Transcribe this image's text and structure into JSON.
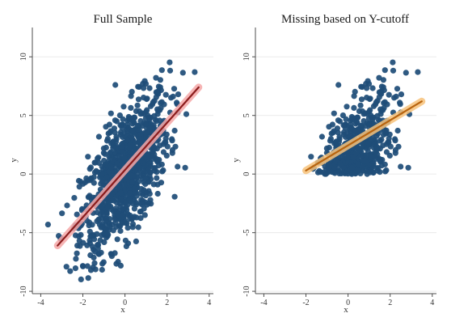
{
  "chart_data": [
    {
      "type": "scatter",
      "title": "Full Sample",
      "xlabel": "x",
      "ylabel": "y",
      "xlim": [
        -4.4,
        4.2
      ],
      "ylim": [
        -10.2,
        12.5
      ],
      "xticks": [
        "-4",
        "-2",
        "0",
        "2",
        "4"
      ],
      "yticks": [
        "-10",
        "-5",
        "0",
        "5",
        "10"
      ],
      "xtick_values": [
        -4,
        -2,
        0,
        2,
        4
      ],
      "ytick_values": [
        -10,
        -5,
        0,
        5,
        10
      ],
      "grid": true,
      "cutoff": null,
      "series": [
        {
          "kind": "points",
          "color": "#1f4e79",
          "n": 1000,
          "x_range": [
            -3.2,
            3.5
          ],
          "y_range": [
            -10,
            9.5
          ]
        },
        {
          "kind": "fit",
          "color": "#8b1c1c",
          "band_color": "#f4a7a7",
          "x": [
            -3.2,
            3.5
          ],
          "y": [
            -6.1,
            7.4
          ]
        }
      ]
    },
    {
      "type": "scatter",
      "title": "Missing based on Y-cutoff",
      "xlabel": "x",
      "ylabel": "y",
      "xlim": [
        -4.4,
        4.2
      ],
      "ylim": [
        -10.2,
        12.5
      ],
      "xticks": [
        "-4",
        "-2",
        "0",
        "2",
        "4"
      ],
      "yticks": [
        "-10",
        "-5",
        "0",
        "5",
        "10"
      ],
      "xtick_values": [
        -4,
        -2,
        0,
        2,
        4
      ],
      "ytick_values": [
        -10,
        -5,
        0,
        5,
        10
      ],
      "grid": true,
      "cutoff": 0,
      "series": [
        {
          "kind": "points",
          "color": "#1f4e79",
          "n": 1000,
          "x_range": [
            -2.0,
            3.5
          ],
          "y_range": [
            0,
            9.5
          ]
        },
        {
          "kind": "fit",
          "color": "#b8640f",
          "band_color": "#f7c27a",
          "x": [
            -2.0,
            3.5
          ],
          "y": [
            0.3,
            6.2
          ]
        }
      ]
    }
  ]
}
